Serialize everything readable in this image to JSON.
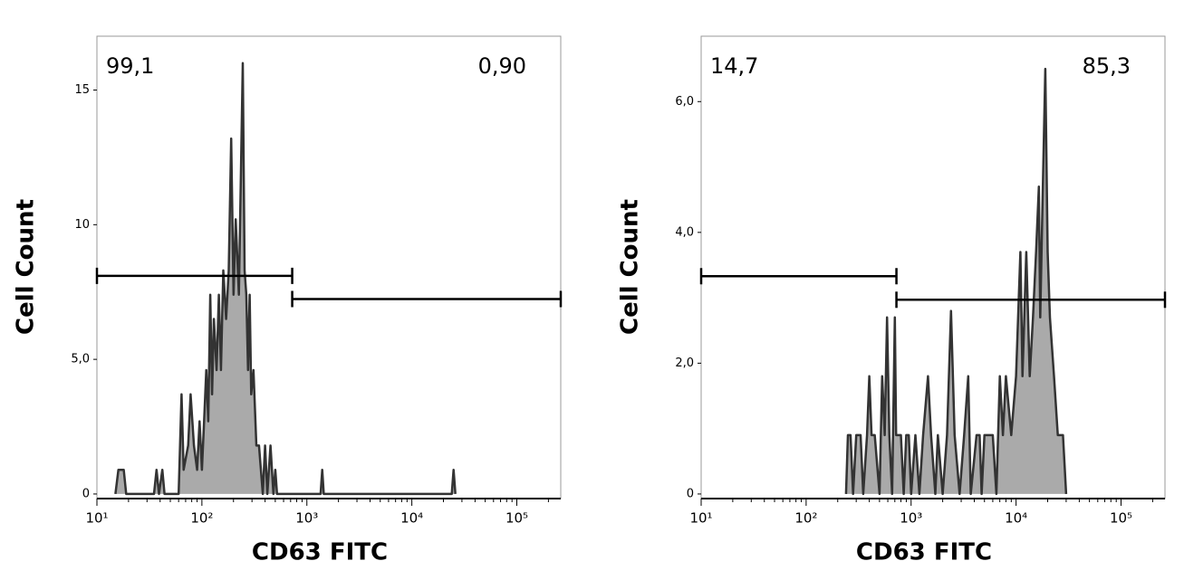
{
  "chart_data": [
    {
      "type": "area",
      "x_label": "CD63 FITC",
      "y_label": "Cell Count",
      "xscale": "log",
      "color": "#aaaaaa",
      "line_color": "#333333",
      "xlim": [
        10,
        262144
      ],
      "xticks": [
        {
          "value": 10,
          "label": "10¹"
        },
        {
          "value": 100,
          "label": "10²"
        },
        {
          "value": 1000,
          "label": "10³"
        },
        {
          "value": 10000,
          "label": "10⁴"
        },
        {
          "value": 100000,
          "label": "10⁵"
        }
      ],
      "ylim": [
        -0.17,
        17
      ],
      "yticks": [
        0,
        {
          "value": 5,
          "label": "5,0"
        },
        10,
        15
      ],
      "x": [
        15,
        16,
        18,
        19,
        35,
        37,
        39,
        42,
        44,
        60,
        64,
        67,
        74,
        78,
        84,
        90,
        95,
        100,
        105,
        110,
        115,
        120,
        125,
        130,
        138,
        145,
        152,
        160,
        170,
        180,
        190,
        200,
        210,
        225,
        245,
        255,
        265,
        275,
        285,
        295,
        310,
        330,
        350,
        380,
        400,
        420,
        450,
        480,
        500,
        520,
        1350,
        1400,
        1450,
        24000,
        25000,
        26000
      ],
      "values": [
        0,
        0.9,
        0.9,
        0,
        0,
        0.9,
        0,
        0.9,
        0,
        0,
        3.7,
        0.9,
        1.8,
        3.7,
        1.8,
        0.9,
        2.7,
        0.9,
        2.7,
        4.6,
        2.7,
        7.4,
        3.7,
        6.5,
        4.6,
        7.4,
        4.6,
        8.3,
        6.5,
        8.3,
        13.2,
        7.4,
        10.2,
        7.4,
        16,
        8.3,
        7.4,
        4.6,
        7.4,
        3.7,
        4.6,
        1.8,
        1.8,
        0,
        1.8,
        0,
        1.8,
        0,
        0.9,
        0,
        0,
        0.9,
        0,
        0,
        0.9,
        0
      ],
      "gates": [
        {
          "label": "99,1",
          "xrange": [
            10,
            725
          ],
          "y": 8.1
        },
        {
          "label": "0,90",
          "xrange": [
            725,
            262144
          ],
          "y": 7.24
        }
      ]
    },
    {
      "type": "area",
      "x_label": "CD63 FITC",
      "y_label": "Cell Count",
      "xscale": "log",
      "color": "#aaaaaa",
      "line_color": "#333333",
      "xlim": [
        10,
        262144
      ],
      "xticks": [
        {
          "value": 10,
          "label": "10¹"
        },
        {
          "value": 100,
          "label": "10²"
        },
        {
          "value": 1000,
          "label": "10³"
        },
        {
          "value": 10000,
          "label": "10⁴"
        },
        {
          "value": 100000,
          "label": "10⁵"
        }
      ],
      "ylim": [
        -0.07,
        7
      ],
      "yticks": [
        0,
        {
          "value": 2,
          "label": "2,0"
        },
        {
          "value": 4,
          "label": "4,0"
        },
        {
          "value": 6,
          "label": "6,0"
        }
      ],
      "x": [
        240,
        250,
        265,
        280,
        300,
        330,
        350,
        380,
        400,
        420,
        450,
        500,
        530,
        560,
        590,
        620,
        660,
        700,
        720,
        760,
        800,
        850,
        900,
        950,
        1000,
        1100,
        1200,
        1300,
        1450,
        1550,
        1700,
        1800,
        2000,
        2200,
        2400,
        2600,
        2900,
        3200,
        3500,
        3700,
        4200,
        4500,
        4700,
        5000,
        5500,
        6000,
        6500,
        7000,
        7500,
        8000,
        9000,
        10000,
        11000,
        11500,
        12500,
        13500,
        14500,
        15500,
        16500,
        17000,
        18000,
        19000,
        20000,
        21000,
        23000,
        25000,
        28000,
        30000
      ],
      "values": [
        0,
        0.9,
        0.9,
        0,
        0.9,
        0.9,
        0,
        0.9,
        1.8,
        0.9,
        0.9,
        0,
        1.8,
        0.9,
        2.7,
        0.9,
        0,
        2.7,
        0.9,
        0.9,
        0.9,
        0,
        0.9,
        0.9,
        0,
        0.9,
        0,
        0.9,
        1.8,
        0.9,
        0,
        0.9,
        0,
        0.9,
        2.8,
        0.9,
        0,
        0.9,
        1.8,
        0,
        0.9,
        0.9,
        0,
        0.9,
        0.9,
        0.9,
        0,
        1.8,
        0.9,
        1.8,
        0.9,
        1.8,
        3.7,
        1.8,
        3.7,
        1.8,
        2.7,
        3.7,
        4.7,
        2.7,
        4.7,
        6.5,
        3.7,
        2.7,
        1.8,
        0.9,
        0.9,
        0
      ],
      "gates": [
        {
          "label": "14,7",
          "xrange": [
            10,
            725
          ],
          "y": 3.33
        },
        {
          "label": "85,3",
          "xrange": [
            725,
            262144
          ],
          "y": 2.97
        }
      ]
    }
  ]
}
